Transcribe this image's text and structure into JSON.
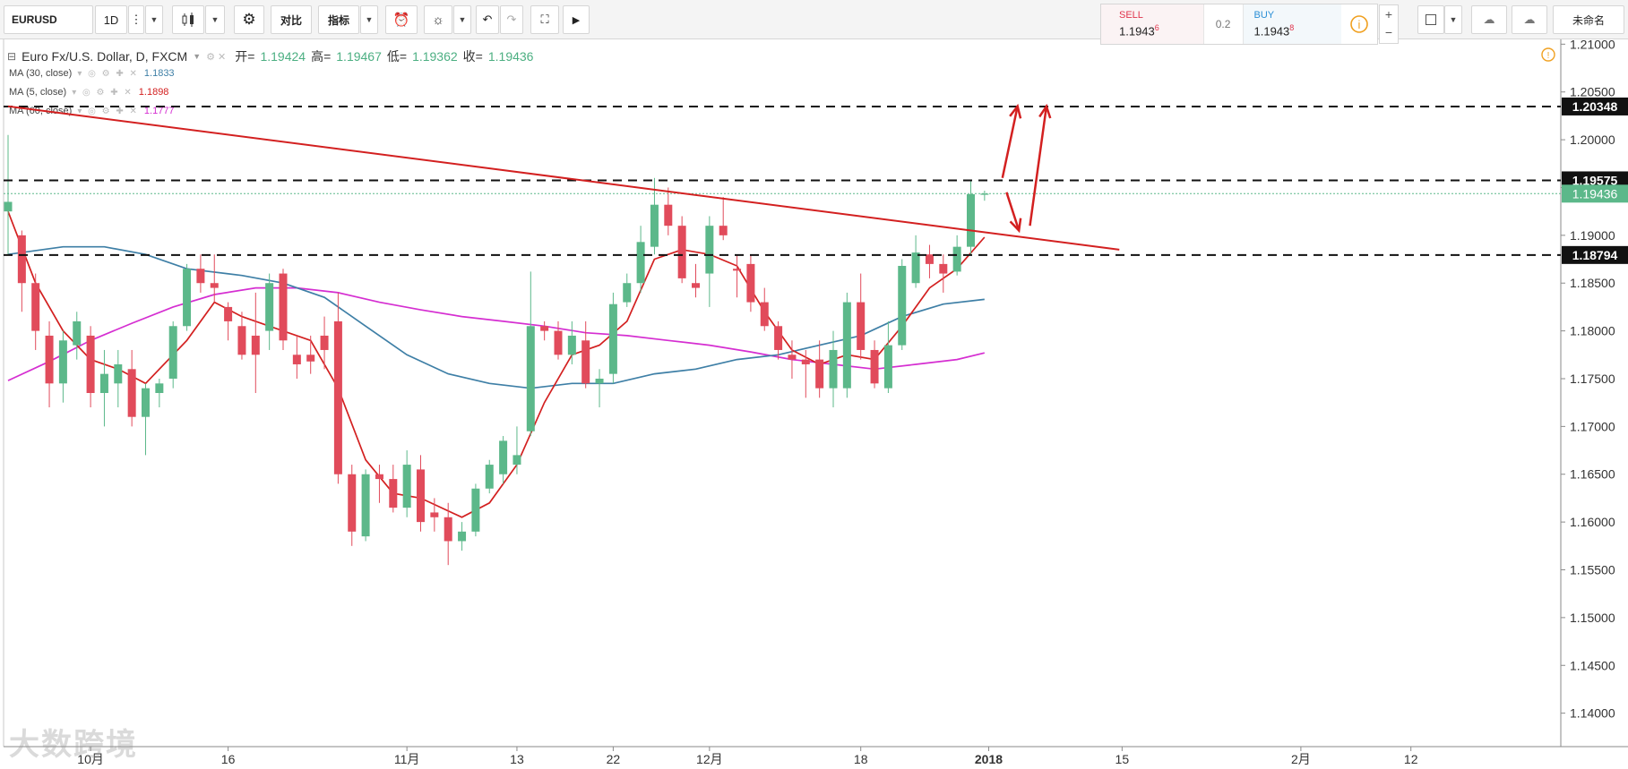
{
  "toolbar": {
    "symbol": "EURUSD",
    "interval": "1D",
    "compare_label": "对比",
    "indicators_label": "指标",
    "layout_name": "未命名"
  },
  "trade": {
    "sell_label": "SELL",
    "sell_price": "1.1943",
    "sell_pip": "6",
    "spread": "0.2",
    "buy_label": "BUY",
    "buy_price": "1.1943",
    "buy_pip": "8"
  },
  "legend": {
    "title": "Euro Fx/U.S. Dollar, D, FXCM",
    "open_label": "开=",
    "open": "1.19424",
    "high_label": "高=",
    "high": "1.19467",
    "low_label": "低=",
    "low": "1.19362",
    "close_label": "收=",
    "close": "1.19436",
    "ma30_label": "MA (30, close)",
    "ma30_value": "1.1833",
    "ma5_label": "MA (5, close)",
    "ma5_value": "1.1898",
    "ma60_label": "MA (60, close)",
    "ma60_value": "1.1777"
  },
  "watermark": "大数跨境",
  "colors": {
    "up": "#5cb88a",
    "down": "#e14b5b",
    "ma5": "#d32020",
    "ma30": "#3e7fa6",
    "ma60": "#d52ed1",
    "trend": "#d32020",
    "price_tag": "#5cb88a"
  },
  "chart_data": {
    "type": "candlestick",
    "ylim": [
      1.1365,
      1.2105
    ],
    "y_ticks": [
      "1.21000",
      "1.20500",
      "1.20000",
      "1.19500",
      "1.19000",
      "1.18500",
      "1.18000",
      "1.17500",
      "1.17000",
      "1.16500",
      "1.16000",
      "1.15500",
      "1.15000",
      "1.14500",
      "1.14000"
    ],
    "x_labels": [
      {
        "text": "10月",
        "i": 6
      },
      {
        "text": "16",
        "i": 16
      },
      {
        "text": "11月",
        "i": 29
      },
      {
        "text": "13",
        "i": 37
      },
      {
        "text": "22",
        "i": 44
      },
      {
        "text": "12月",
        "i": 51
      },
      {
        "text": "18",
        "i": 62
      },
      {
        "text": "2018",
        "i": 71.3
      },
      {
        "text": "15",
        "i": 81
      },
      {
        "text": "2月",
        "i": 94
      },
      {
        "text": "12",
        "i": 102
      }
    ],
    "candles": [
      {
        "o": 1.1925,
        "h": 1.2005,
        "l": 1.188,
        "c": 1.1935
      },
      {
        "o": 1.19,
        "h": 1.1905,
        "l": 1.182,
        "c": 1.185
      },
      {
        "o": 1.185,
        "h": 1.186,
        "l": 1.178,
        "c": 1.18
      },
      {
        "o": 1.1795,
        "h": 1.181,
        "l": 1.172,
        "c": 1.1745
      },
      {
        "o": 1.1745,
        "h": 1.18,
        "l": 1.1725,
        "c": 1.179
      },
      {
        "o": 1.1785,
        "h": 1.182,
        "l": 1.177,
        "c": 1.181
      },
      {
        "o": 1.1795,
        "h": 1.1805,
        "l": 1.172,
        "c": 1.1735
      },
      {
        "o": 1.1735,
        "h": 1.178,
        "l": 1.17,
        "c": 1.1755
      },
      {
        "o": 1.1745,
        "h": 1.178,
        "l": 1.172,
        "c": 1.1765
      },
      {
        "o": 1.176,
        "h": 1.178,
        "l": 1.17,
        "c": 1.171
      },
      {
        "o": 1.171,
        "h": 1.1745,
        "l": 1.167,
        "c": 1.174
      },
      {
        "o": 1.1735,
        "h": 1.175,
        "l": 1.172,
        "c": 1.1745
      },
      {
        "o": 1.175,
        "h": 1.181,
        "l": 1.174,
        "c": 1.1805
      },
      {
        "o": 1.1805,
        "h": 1.187,
        "l": 1.18,
        "c": 1.1865
      },
      {
        "o": 1.1865,
        "h": 1.188,
        "l": 1.184,
        "c": 1.185
      },
      {
        "o": 1.185,
        "h": 1.188,
        "l": 1.183,
        "c": 1.1845
      },
      {
        "o": 1.1825,
        "h": 1.183,
        "l": 1.179,
        "c": 1.181
      },
      {
        "o": 1.1805,
        "h": 1.182,
        "l": 1.177,
        "c": 1.1775
      },
      {
        "o": 1.1795,
        "h": 1.184,
        "l": 1.1735,
        "c": 1.1775
      },
      {
        "o": 1.18,
        "h": 1.186,
        "l": 1.178,
        "c": 1.185
      },
      {
        "o": 1.186,
        "h": 1.1865,
        "l": 1.178,
        "c": 1.179
      },
      {
        "o": 1.1775,
        "h": 1.1795,
        "l": 1.175,
        "c": 1.1765
      },
      {
        "o": 1.1775,
        "h": 1.1795,
        "l": 1.1755,
        "c": 1.1768
      },
      {
        "o": 1.1795,
        "h": 1.1815,
        "l": 1.176,
        "c": 1.178
      },
      {
        "o": 1.181,
        "h": 1.184,
        "l": 1.164,
        "c": 1.165
      },
      {
        "o": 1.165,
        "h": 1.166,
        "l": 1.1575,
        "c": 1.159
      },
      {
        "o": 1.1585,
        "h": 1.1655,
        "l": 1.158,
        "c": 1.165
      },
      {
        "o": 1.165,
        "h": 1.166,
        "l": 1.162,
        "c": 1.1645
      },
      {
        "o": 1.1645,
        "h": 1.166,
        "l": 1.161,
        "c": 1.1615
      },
      {
        "o": 1.1615,
        "h": 1.1675,
        "l": 1.1605,
        "c": 1.166
      },
      {
        "o": 1.1655,
        "h": 1.167,
        "l": 1.159,
        "c": 1.16
      },
      {
        "o": 1.161,
        "h": 1.1625,
        "l": 1.159,
        "c": 1.1605
      },
      {
        "o": 1.1605,
        "h": 1.162,
        "l": 1.1555,
        "c": 1.158
      },
      {
        "o": 1.158,
        "h": 1.16,
        "l": 1.157,
        "c": 1.159
      },
      {
        "o": 1.159,
        "h": 1.164,
        "l": 1.1585,
        "c": 1.1635
      },
      {
        "o": 1.1635,
        "h": 1.1665,
        "l": 1.163,
        "c": 1.166
      },
      {
        "o": 1.165,
        "h": 1.169,
        "l": 1.164,
        "c": 1.1685
      },
      {
        "o": 1.166,
        "h": 1.17,
        "l": 1.165,
        "c": 1.167
      },
      {
        "o": 1.1695,
        "h": 1.1862,
        "l": 1.169,
        "c": 1.1805
      },
      {
        "o": 1.1805,
        "h": 1.181,
        "l": 1.179,
        "c": 1.18
      },
      {
        "o": 1.18,
        "h": 1.181,
        "l": 1.177,
        "c": 1.1775
      },
      {
        "o": 1.1775,
        "h": 1.181,
        "l": 1.1765,
        "c": 1.1795
      },
      {
        "o": 1.179,
        "h": 1.181,
        "l": 1.174,
        "c": 1.1745
      },
      {
        "o": 1.1745,
        "h": 1.176,
        "l": 1.172,
        "c": 1.175
      },
      {
        "o": 1.1755,
        "h": 1.184,
        "l": 1.1745,
        "c": 1.1828
      },
      {
        "o": 1.183,
        "h": 1.186,
        "l": 1.1825,
        "c": 1.185
      },
      {
        "o": 1.185,
        "h": 1.191,
        "l": 1.184,
        "c": 1.1893
      },
      {
        "o": 1.1888,
        "h": 1.196,
        "l": 1.188,
        "c": 1.1932
      },
      {
        "o": 1.1932,
        "h": 1.195,
        "l": 1.19,
        "c": 1.191
      },
      {
        "o": 1.191,
        "h": 1.192,
        "l": 1.185,
        "c": 1.1855
      },
      {
        "o": 1.185,
        "h": 1.187,
        "l": 1.1835,
        "c": 1.1845
      },
      {
        "o": 1.186,
        "h": 1.192,
        "l": 1.1825,
        "c": 1.191
      },
      {
        "o": 1.191,
        "h": 1.194,
        "l": 1.1895,
        "c": 1.19
      },
      {
        "o": 1.1865,
        "h": 1.188,
        "l": 1.1835,
        "c": 1.1863
      },
      {
        "o": 1.187,
        "h": 1.188,
        "l": 1.182,
        "c": 1.183
      },
      {
        "o": 1.183,
        "h": 1.1845,
        "l": 1.18,
        "c": 1.1805
      },
      {
        "o": 1.1805,
        "h": 1.181,
        "l": 1.177,
        "c": 1.178
      },
      {
        "o": 1.1775,
        "h": 1.179,
        "l": 1.175,
        "c": 1.177
      },
      {
        "o": 1.177,
        "h": 1.178,
        "l": 1.173,
        "c": 1.1765
      },
      {
        "o": 1.177,
        "h": 1.179,
        "l": 1.173,
        "c": 1.174
      },
      {
        "o": 1.174,
        "h": 1.18,
        "l": 1.172,
        "c": 1.178
      },
      {
        "o": 1.174,
        "h": 1.184,
        "l": 1.173,
        "c": 1.183
      },
      {
        "o": 1.183,
        "h": 1.186,
        "l": 1.177,
        "c": 1.178
      },
      {
        "o": 1.178,
        "h": 1.179,
        "l": 1.174,
        "c": 1.1745
      },
      {
        "o": 1.174,
        "h": 1.181,
        "l": 1.1735,
        "c": 1.1785
      },
      {
        "o": 1.1785,
        "h": 1.1875,
        "l": 1.178,
        "c": 1.1868
      },
      {
        "o": 1.185,
        "h": 1.19,
        "l": 1.1845,
        "c": 1.1882
      },
      {
        "o": 1.188,
        "h": 1.189,
        "l": 1.1855,
        "c": 1.187
      },
      {
        "o": 1.187,
        "h": 1.188,
        "l": 1.184,
        "c": 1.186
      },
      {
        "o": 1.1862,
        "h": 1.19,
        "l": 1.1858,
        "c": 1.1888
      },
      {
        "o": 1.1888,
        "h": 1.1958,
        "l": 1.188,
        "c": 1.1943
      },
      {
        "o": 1.19424,
        "h": 1.19467,
        "l": 1.19362,
        "c": 1.19436
      }
    ],
    "ma5": [
      [
        0,
        1.1925
      ],
      [
        2,
        1.185
      ],
      [
        4,
        1.18
      ],
      [
        6,
        1.177
      ],
      [
        8,
        1.176
      ],
      [
        10,
        1.1745
      ],
      [
        13,
        1.179
      ],
      [
        15,
        1.183
      ],
      [
        17,
        1.1815
      ],
      [
        19,
        1.1805
      ],
      [
        22,
        1.179
      ],
      [
        24,
        1.174
      ],
      [
        26,
        1.1665
      ],
      [
        28,
        1.163
      ],
      [
        30,
        1.1625
      ],
      [
        33,
        1.1605
      ],
      [
        35,
        1.162
      ],
      [
        37,
        1.166
      ],
      [
        39,
        1.1725
      ],
      [
        41,
        1.1775
      ],
      [
        43,
        1.1785
      ],
      [
        45,
        1.181
      ],
      [
        47,
        1.1875
      ],
      [
        49,
        1.1885
      ],
      [
        51,
        1.188
      ],
      [
        53,
        1.1868
      ],
      [
        55,
        1.182
      ],
      [
        57,
        1.178
      ],
      [
        59,
        1.1765
      ],
      [
        61,
        1.1775
      ],
      [
        63,
        1.177
      ],
      [
        65,
        1.1805
      ],
      [
        67,
        1.1845
      ],
      [
        69,
        1.1865
      ],
      [
        71,
        1.1898
      ]
    ],
    "ma30": [
      [
        0,
        1.188
      ],
      [
        4,
        1.1888
      ],
      [
        7,
        1.1888
      ],
      [
        10,
        1.188
      ],
      [
        13,
        1.1865
      ],
      [
        17,
        1.1858
      ],
      [
        20,
        1.185
      ],
      [
        23,
        1.1835
      ],
      [
        26,
        1.1805
      ],
      [
        29,
        1.1775
      ],
      [
        32,
        1.1755
      ],
      [
        35,
        1.1745
      ],
      [
        38,
        1.174
      ],
      [
        41,
        1.1745
      ],
      [
        44,
        1.1745
      ],
      [
        47,
        1.1755
      ],
      [
        50,
        1.176
      ],
      [
        53,
        1.177
      ],
      [
        56,
        1.1775
      ],
      [
        59,
        1.1785
      ],
      [
        62,
        1.1795
      ],
      [
        65,
        1.1815
      ],
      [
        68,
        1.1828
      ],
      [
        71,
        1.1833
      ]
    ],
    "ma60": [
      [
        0,
        1.1748
      ],
      [
        3,
        1.1768
      ],
      [
        6,
        1.179
      ],
      [
        9,
        1.1808
      ],
      [
        12,
        1.1825
      ],
      [
        15,
        1.1838
      ],
      [
        18,
        1.1845
      ],
      [
        21,
        1.1845
      ],
      [
        24,
        1.184
      ],
      [
        27,
        1.183
      ],
      [
        30,
        1.1822
      ],
      [
        33,
        1.1815
      ],
      [
        36,
        1.181
      ],
      [
        39,
        1.1805
      ],
      [
        42,
        1.1798
      ],
      [
        45,
        1.1795
      ],
      [
        48,
        1.179
      ],
      [
        51,
        1.1785
      ],
      [
        54,
        1.1778
      ],
      [
        57,
        1.177
      ],
      [
        60,
        1.1765
      ],
      [
        63,
        1.176
      ],
      [
        66,
        1.1765
      ],
      [
        69,
        1.177
      ],
      [
        71,
        1.1777
      ]
    ],
    "trendline": [
      [
        0,
        1.2035
      ],
      [
        80.8,
        1.1885
      ]
    ],
    "h_levels": [
      {
        "value": 1.20348,
        "label": "1.20348"
      },
      {
        "value": 1.19575,
        "label": "1.19575"
      },
      {
        "value": 1.18794,
        "label": "1.18794"
      }
    ],
    "last_price": {
      "value": 1.19436,
      "label": "1.19436"
    },
    "arrows": [
      {
        "from": [
          72.3,
          1.196
        ],
        "to": [
          73.4,
          1.2035
        ]
      },
      {
        "from": [
          72.6,
          1.1945
        ],
        "to": [
          73.5,
          1.1905
        ]
      },
      {
        "from": [
          74.3,
          1.191
        ],
        "to": [
          75.5,
          1.2035
        ]
      }
    ]
  }
}
